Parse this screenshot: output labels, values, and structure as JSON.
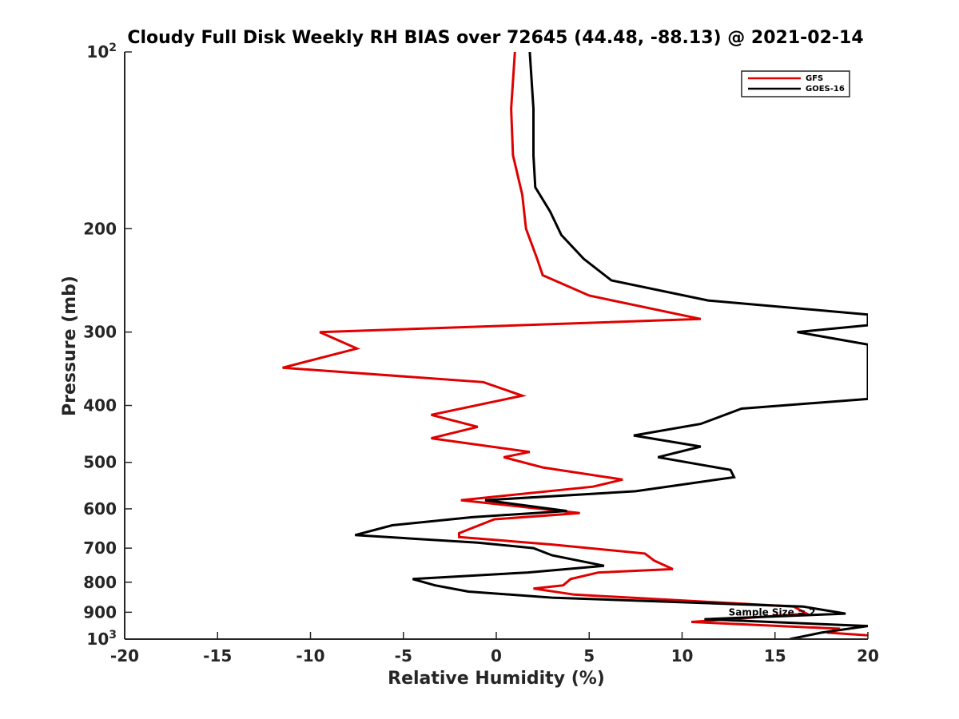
{
  "chart_data": {
    "type": "line",
    "title": "Cloudy Full Disk Weekly RH BIAS over 72645 (44.48, -88.13) @ 2021-02-14",
    "xlabel": "Relative Humidity (%)",
    "ylabel": "Pressure (mb)",
    "xlim": [
      -20,
      20
    ],
    "ylim": [
      100,
      1000
    ],
    "y_scale": "log",
    "y_reversed": true,
    "grid": false,
    "legend_position": "top-right",
    "x_ticks": [
      "-20",
      "-15",
      "-10",
      "-5",
      "0",
      "5",
      "10",
      "15",
      "20"
    ],
    "y_ticks": [
      {
        "value": 100,
        "base": "10",
        "exp": "2"
      },
      {
        "value": 200,
        "label": "200"
      },
      {
        "value": 300,
        "label": "300"
      },
      {
        "value": 400,
        "label": "400"
      },
      {
        "value": 500,
        "label": "500"
      },
      {
        "value": 600,
        "label": "600"
      },
      {
        "value": 700,
        "label": "700"
      },
      {
        "value": 800,
        "label": "800"
      },
      {
        "value": 900,
        "label": "900"
      },
      {
        "value": 1000,
        "base": "10",
        "exp": "3"
      }
    ],
    "series": [
      {
        "name": "GFS",
        "color": "#e00000",
        "points": [
          [
            1.0,
            100
          ],
          [
            0.8,
            125
          ],
          [
            0.9,
            150
          ],
          [
            1.4,
            175
          ],
          [
            1.6,
            200
          ],
          [
            2.2,
            225
          ],
          [
            2.5,
            240
          ],
          [
            5.0,
            260
          ],
          [
            11.0,
            285
          ],
          [
            -9.5,
            300
          ],
          [
            -7.5,
            320
          ],
          [
            -11.5,
            345
          ],
          [
            -0.7,
            365
          ],
          [
            1.4,
            385
          ],
          [
            -3.5,
            415
          ],
          [
            -1.0,
            435
          ],
          [
            -3.5,
            455
          ],
          [
            1.8,
            480
          ],
          [
            0.4,
            490
          ],
          [
            2.5,
            510
          ],
          [
            6.8,
            535
          ],
          [
            5.2,
            550
          ],
          [
            -1.9,
            580
          ],
          [
            4.5,
            610
          ],
          [
            -0.1,
            625
          ],
          [
            -2.0,
            660
          ],
          [
            -2.0,
            670
          ],
          [
            3.0,
            690
          ],
          [
            8.0,
            715
          ],
          [
            8.5,
            735
          ],
          [
            9.5,
            760
          ],
          [
            5.5,
            770
          ],
          [
            4.0,
            790
          ],
          [
            3.6,
            810
          ],
          [
            2.0,
            820
          ],
          [
            4.2,
            840
          ],
          [
            16.0,
            880
          ],
          [
            16.7,
            905
          ],
          [
            10.5,
            935
          ],
          [
            18.5,
            960
          ],
          [
            17.8,
            975
          ],
          [
            20.0,
            985
          ]
        ]
      },
      {
        "name": "GOES-16",
        "color": "#000000",
        "points": [
          [
            1.8,
            100
          ],
          [
            2.0,
            125
          ],
          [
            2.0,
            150
          ],
          [
            2.1,
            170
          ],
          [
            2.9,
            187
          ],
          [
            3.5,
            205
          ],
          [
            4.7,
            225
          ],
          [
            6.2,
            245
          ],
          [
            11.4,
            265
          ],
          [
            20.0,
            280
          ],
          [
            20.0,
            292
          ],
          [
            16.2,
            300
          ],
          [
            20.0,
            315
          ],
          [
            20.0,
            390
          ],
          [
            13.2,
            405
          ],
          [
            11.0,
            430
          ],
          [
            7.4,
            450
          ],
          [
            11.0,
            470
          ],
          [
            8.7,
            490
          ],
          [
            12.6,
            515
          ],
          [
            12.8,
            530
          ],
          [
            7.5,
            560
          ],
          [
            -0.6,
            580
          ],
          [
            3.8,
            605
          ],
          [
            -1.3,
            620
          ],
          [
            -5.6,
            640
          ],
          [
            -7.6,
            665
          ],
          [
            -1.0,
            685
          ],
          [
            2.0,
            700
          ],
          [
            3.0,
            720
          ],
          [
            5.8,
            750
          ],
          [
            1.7,
            770
          ],
          [
            -4.5,
            790
          ],
          [
            -3.3,
            810
          ],
          [
            -1.5,
            830
          ],
          [
            3.0,
            850
          ],
          [
            16.5,
            880
          ],
          [
            18.8,
            905
          ],
          [
            11.2,
            925
          ],
          [
            20.0,
            950
          ],
          [
            17.5,
            975
          ],
          [
            15.8,
            1000
          ]
        ]
      }
    ],
    "annotations": [
      {
        "text": "Sample Size = 2",
        "x": 12.5,
        "y": 900
      }
    ]
  }
}
